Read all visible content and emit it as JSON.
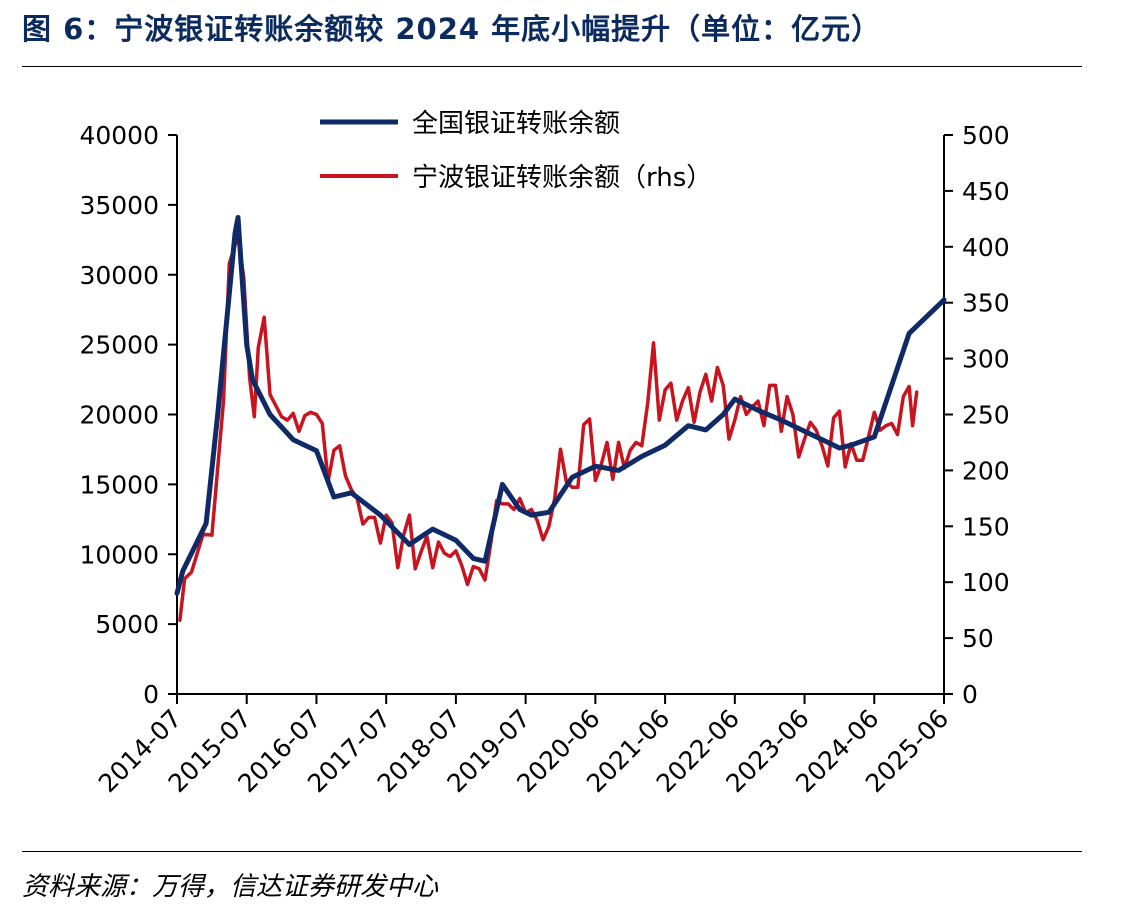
{
  "title": "图 6：宁波银证转账余额较 2024 年底小幅提升（单位：亿元）",
  "source": "资料来源：万得，信达证券研发中心",
  "colors": {
    "national": "#0f2a66",
    "ningbo": "#c8141e",
    "title": "#0b2a5e"
  },
  "chart_data": {
    "type": "line",
    "legend_position": "top-center",
    "grid": false,
    "y_left": {
      "min": 0,
      "max": 40000,
      "ticks": [
        0,
        5000,
        10000,
        15000,
        20000,
        25000,
        30000,
        35000,
        40000
      ]
    },
    "y_right": {
      "min": 0,
      "max": 500,
      "ticks": [
        0,
        50,
        100,
        150,
        200,
        250,
        300,
        350,
        400,
        450,
        500
      ]
    },
    "x_tick_labels": [
      "2014-07",
      "2015-07",
      "2016-07",
      "2017-07",
      "2018-07",
      "2019-07",
      "2020-06",
      "2021-06",
      "2022-06",
      "2023-06",
      "2024-06",
      "2025-06"
    ],
    "x_range": [
      0,
      132
    ],
    "series": [
      {
        "name": "全国银证转账余额",
        "axis": "left",
        "points": [
          [
            0,
            7200
          ],
          [
            1,
            8800
          ],
          [
            5,
            12200
          ],
          [
            7,
            20000
          ],
          [
            10,
            33000
          ],
          [
            10.5,
            34100
          ],
          [
            11,
            31000
          ],
          [
            12,
            25000
          ],
          [
            13,
            22500
          ],
          [
            16,
            20000
          ],
          [
            20,
            18200
          ],
          [
            24,
            17400
          ],
          [
            27,
            14100
          ],
          [
            30,
            14400
          ],
          [
            35,
            12800
          ],
          [
            40,
            10700
          ],
          [
            44,
            11800
          ],
          [
            48,
            11000
          ],
          [
            51,
            9700
          ],
          [
            53,
            9500
          ],
          [
            56,
            15000
          ],
          [
            59,
            13200
          ],
          [
            61,
            12800
          ],
          [
            64,
            13000
          ],
          [
            68,
            15500
          ],
          [
            72,
            16300
          ],
          [
            76,
            16000
          ],
          [
            80,
            17000
          ],
          [
            84,
            17800
          ],
          [
            88,
            19200
          ],
          [
            91,
            18900
          ],
          [
            94,
            20000
          ],
          [
            96,
            21100
          ],
          [
            100,
            20300
          ],
          [
            104,
            19600
          ],
          [
            108,
            18800
          ],
          [
            112,
            18000
          ],
          [
            114,
            17600
          ],
          [
            116,
            17800
          ],
          [
            120,
            18400
          ],
          [
            126,
            25800
          ],
          [
            132,
            28200
          ]
        ]
      },
      {
        "name": "宁波银证转账余额（rhs）",
        "axis": "right",
        "points": [
          [
            0.5,
            66
          ],
          [
            1.3,
            103
          ],
          [
            2.5,
            109
          ],
          [
            4.5,
            143
          ],
          [
            6,
            142
          ],
          [
            7,
            202
          ],
          [
            8,
            262
          ],
          [
            9,
            385
          ],
          [
            10.5,
            410
          ],
          [
            11.5,
            372
          ],
          [
            12.5,
            283
          ],
          [
            13.3,
            248
          ],
          [
            14,
            310
          ],
          [
            15,
            337
          ],
          [
            16,
            268
          ],
          [
            17,
            258
          ],
          [
            18,
            248
          ],
          [
            19,
            245
          ],
          [
            20,
            251
          ],
          [
            21,
            235
          ],
          [
            22,
            249
          ],
          [
            23,
            252
          ],
          [
            24,
            250
          ],
          [
            25,
            242
          ],
          [
            26,
            190
          ],
          [
            27,
            218
          ],
          [
            28,
            222
          ],
          [
            29,
            195
          ],
          [
            30,
            183
          ],
          [
            31,
            175
          ],
          [
            32,
            152
          ],
          [
            33,
            158
          ],
          [
            34,
            158
          ],
          [
            35,
            135
          ],
          [
            36,
            160
          ],
          [
            37,
            153
          ],
          [
            38,
            113
          ],
          [
            39,
            142
          ],
          [
            40,
            160
          ],
          [
            41,
            112
          ],
          [
            42,
            127
          ],
          [
            43,
            141
          ],
          [
            44,
            113
          ],
          [
            45,
            136
          ],
          [
            46,
            126
          ],
          [
            47,
            123
          ],
          [
            48,
            128
          ],
          [
            49,
            115
          ],
          [
            50,
            98
          ],
          [
            51,
            114
          ],
          [
            52,
            112
          ],
          [
            53,
            102
          ],
          [
            54,
            135
          ],
          [
            55,
            173
          ],
          [
            56,
            170
          ],
          [
            57,
            170
          ],
          [
            58,
            165
          ],
          [
            59,
            175
          ],
          [
            60,
            162
          ],
          [
            61,
            165
          ],
          [
            62,
            155
          ],
          [
            63,
            138
          ],
          [
            64,
            150
          ],
          [
            65,
            175
          ],
          [
            66,
            219
          ],
          [
            67,
            190
          ],
          [
            68,
            185
          ],
          [
            69,
            185
          ],
          [
            70,
            241
          ],
          [
            71,
            246
          ],
          [
            72,
            191
          ],
          [
            73,
            205
          ],
          [
            74,
            225
          ],
          [
            75,
            192
          ],
          [
            76,
            225
          ],
          [
            77,
            202
          ],
          [
            78,
            218
          ],
          [
            79,
            225
          ],
          [
            80,
            222
          ],
          [
            81,
            260
          ],
          [
            82,
            314
          ],
          [
            83,
            245
          ],
          [
            84,
            272
          ],
          [
            85,
            278
          ],
          [
            86,
            245
          ],
          [
            87,
            262
          ],
          [
            88,
            274
          ],
          [
            89,
            243
          ],
          [
            90,
            270
          ],
          [
            91,
            286
          ],
          [
            92,
            262
          ],
          [
            93,
            292
          ],
          [
            94,
            276
          ],
          [
            95,
            228
          ],
          [
            96,
            245
          ],
          [
            97,
            266
          ],
          [
            98,
            250
          ],
          [
            99,
            257
          ],
          [
            100,
            262
          ],
          [
            101,
            240
          ],
          [
            102,
            276
          ],
          [
            103,
            276
          ],
          [
            104,
            235
          ],
          [
            105,
            266
          ],
          [
            106,
            250
          ],
          [
            107,
            212
          ],
          [
            108,
            228
          ],
          [
            109,
            243
          ],
          [
            110,
            236
          ],
          [
            111,
            222
          ],
          [
            112,
            204
          ],
          [
            113,
            247
          ],
          [
            114,
            253
          ],
          [
            115,
            203
          ],
          [
            116,
            224
          ],
          [
            117,
            209
          ],
          [
            118,
            209
          ],
          [
            119,
            230
          ],
          [
            120,
            252
          ],
          [
            121,
            236
          ],
          [
            122,
            240
          ],
          [
            123,
            242
          ],
          [
            124,
            232
          ],
          [
            125,
            266
          ],
          [
            126,
            275
          ],
          [
            126.6,
            240
          ],
          [
            127.3,
            270
          ]
        ]
      }
    ]
  }
}
